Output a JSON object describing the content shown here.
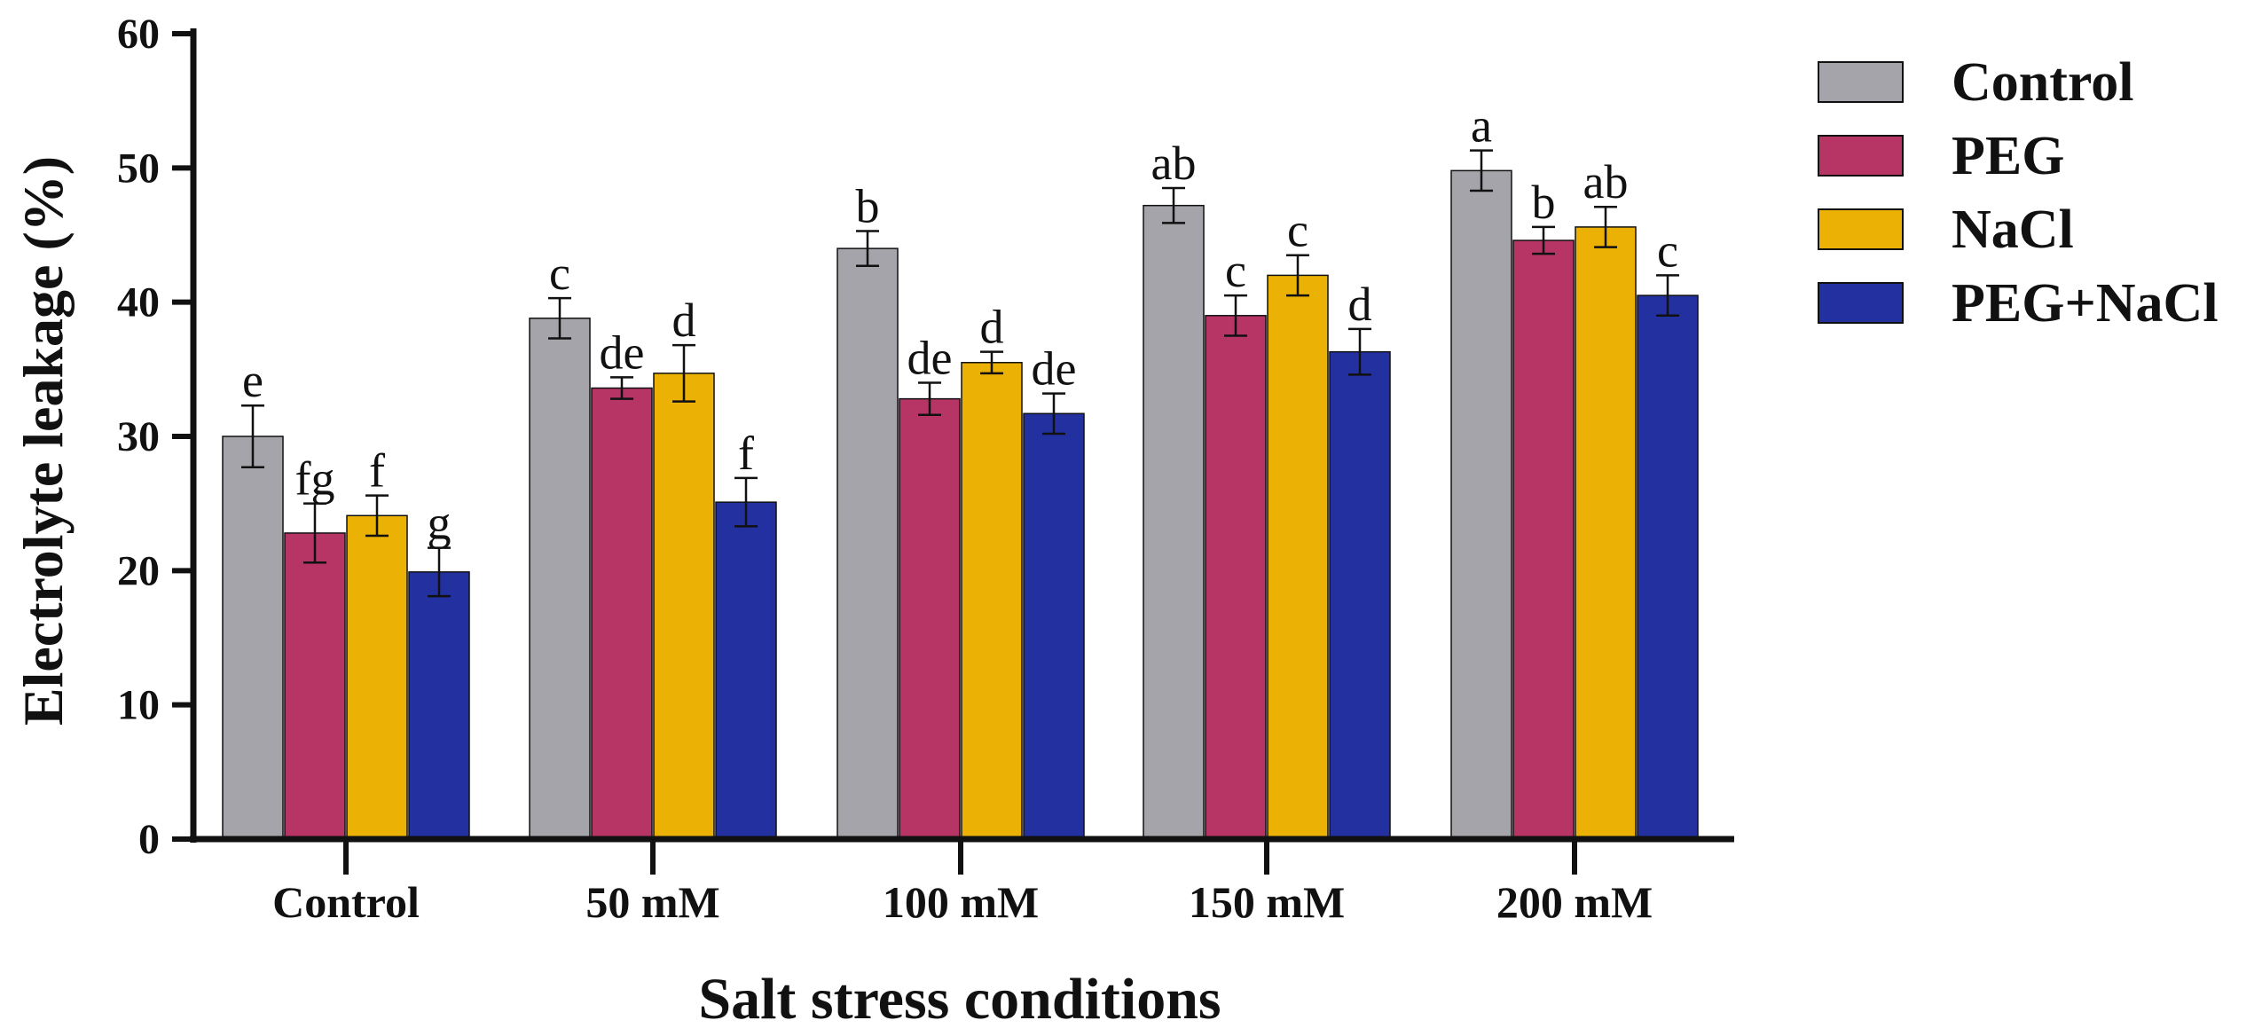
{
  "chart_data": {
    "type": "bar",
    "title": "",
    "xlabel": "Salt stress conditions",
    "ylabel": "Electrolyte leakage (%)",
    "ylim": [
      0,
      60
    ],
    "yticks": [
      0,
      10,
      20,
      30,
      40,
      50,
      60
    ],
    "grid": false,
    "legend_position": "top-right",
    "categories": [
      "Control",
      "50 mM",
      "100 mM",
      "150 mM",
      "200 mM"
    ],
    "series": [
      {
        "name": "Control",
        "color": "#a5a4aa",
        "values": [
          30.0,
          38.8,
          44.0,
          47.2,
          49.8
        ],
        "errors": [
          2.3,
          1.5,
          1.3,
          1.3,
          1.5
        ],
        "letters": [
          "e",
          "c",
          "b",
          "ab",
          "a"
        ]
      },
      {
        "name": "PEG",
        "color": "#b63565",
        "values": [
          22.8,
          33.6,
          32.8,
          39.0,
          44.6
        ],
        "errors": [
          2.2,
          0.8,
          1.2,
          1.5,
          1.0
        ],
        "letters": [
          "fg",
          "de",
          "de",
          "c",
          "b"
        ]
      },
      {
        "name": "NaCl",
        "color": "#ebb104",
        "values": [
          24.1,
          34.7,
          35.5,
          42.0,
          45.6
        ],
        "errors": [
          1.5,
          2.1,
          0.8,
          1.5,
          1.5
        ],
        "letters": [
          "f",
          "d",
          "d",
          "c",
          "ab"
        ]
      },
      {
        "name": "PEG+NaCl",
        "color": "#2330a0",
        "values": [
          19.9,
          25.1,
          31.7,
          36.3,
          40.5
        ],
        "errors": [
          1.8,
          1.8,
          1.5,
          1.7,
          1.5
        ],
        "letters": [
          "g",
          "f",
          "de",
          "d",
          "c"
        ]
      }
    ]
  }
}
